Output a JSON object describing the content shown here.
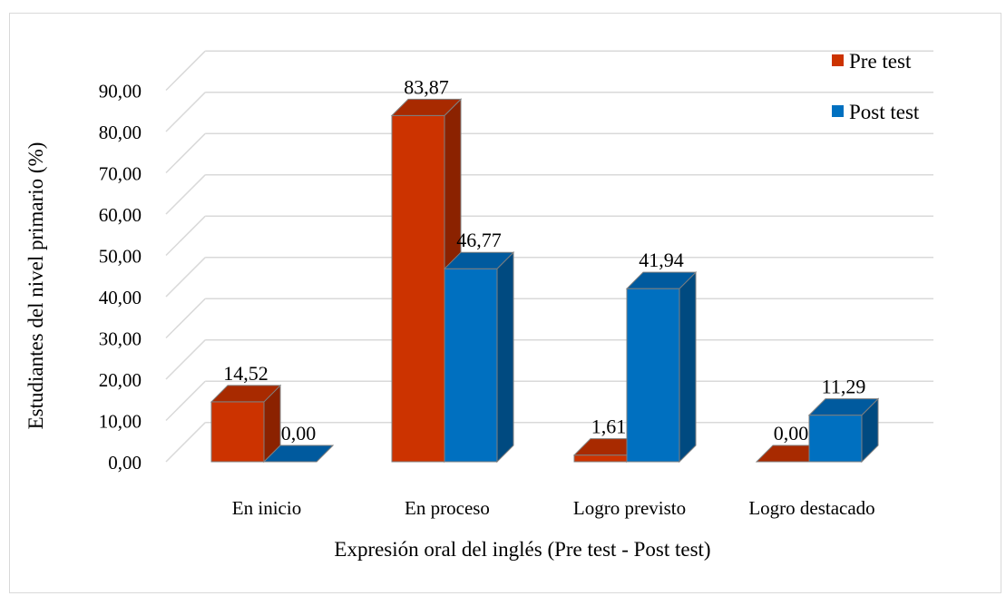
{
  "chart_data": {
    "type": "bar",
    "style": "3d-clustered-column",
    "categories": [
      "En inicio",
      "En proceso",
      "Logro previsto",
      "Logro destacado"
    ],
    "series": [
      {
        "name": "Pre test",
        "values": [
          14.52,
          83.87,
          1.61,
          0.0
        ],
        "labels": [
          "14,52",
          "83,87",
          "1,61",
          "0,00"
        ],
        "color": "#cc3300",
        "side_color": "#8b2200",
        "top_color": "#a82a00"
      },
      {
        "name": "Post test",
        "values": [
          0.0,
          46.77,
          41.94,
          11.29
        ],
        "labels": [
          "0,00",
          "46,77",
          "41,94",
          "11,29"
        ],
        "color": "#0070c0",
        "side_color": "#004a80",
        "top_color": "#005a9e"
      }
    ],
    "yticks": [
      "0,00",
      "10,00",
      "20,00",
      "30,00",
      "40,00",
      "50,00",
      "60,00",
      "70,00",
      "80,00",
      "90,00"
    ],
    "ylim": [
      0,
      90
    ],
    "xlabel": "Expresión oral del inglés (Pre test - Post test)",
    "ylabel": "Estudiantes del nivel primario (%)",
    "legend_position": "top-right",
    "grid": true
  }
}
